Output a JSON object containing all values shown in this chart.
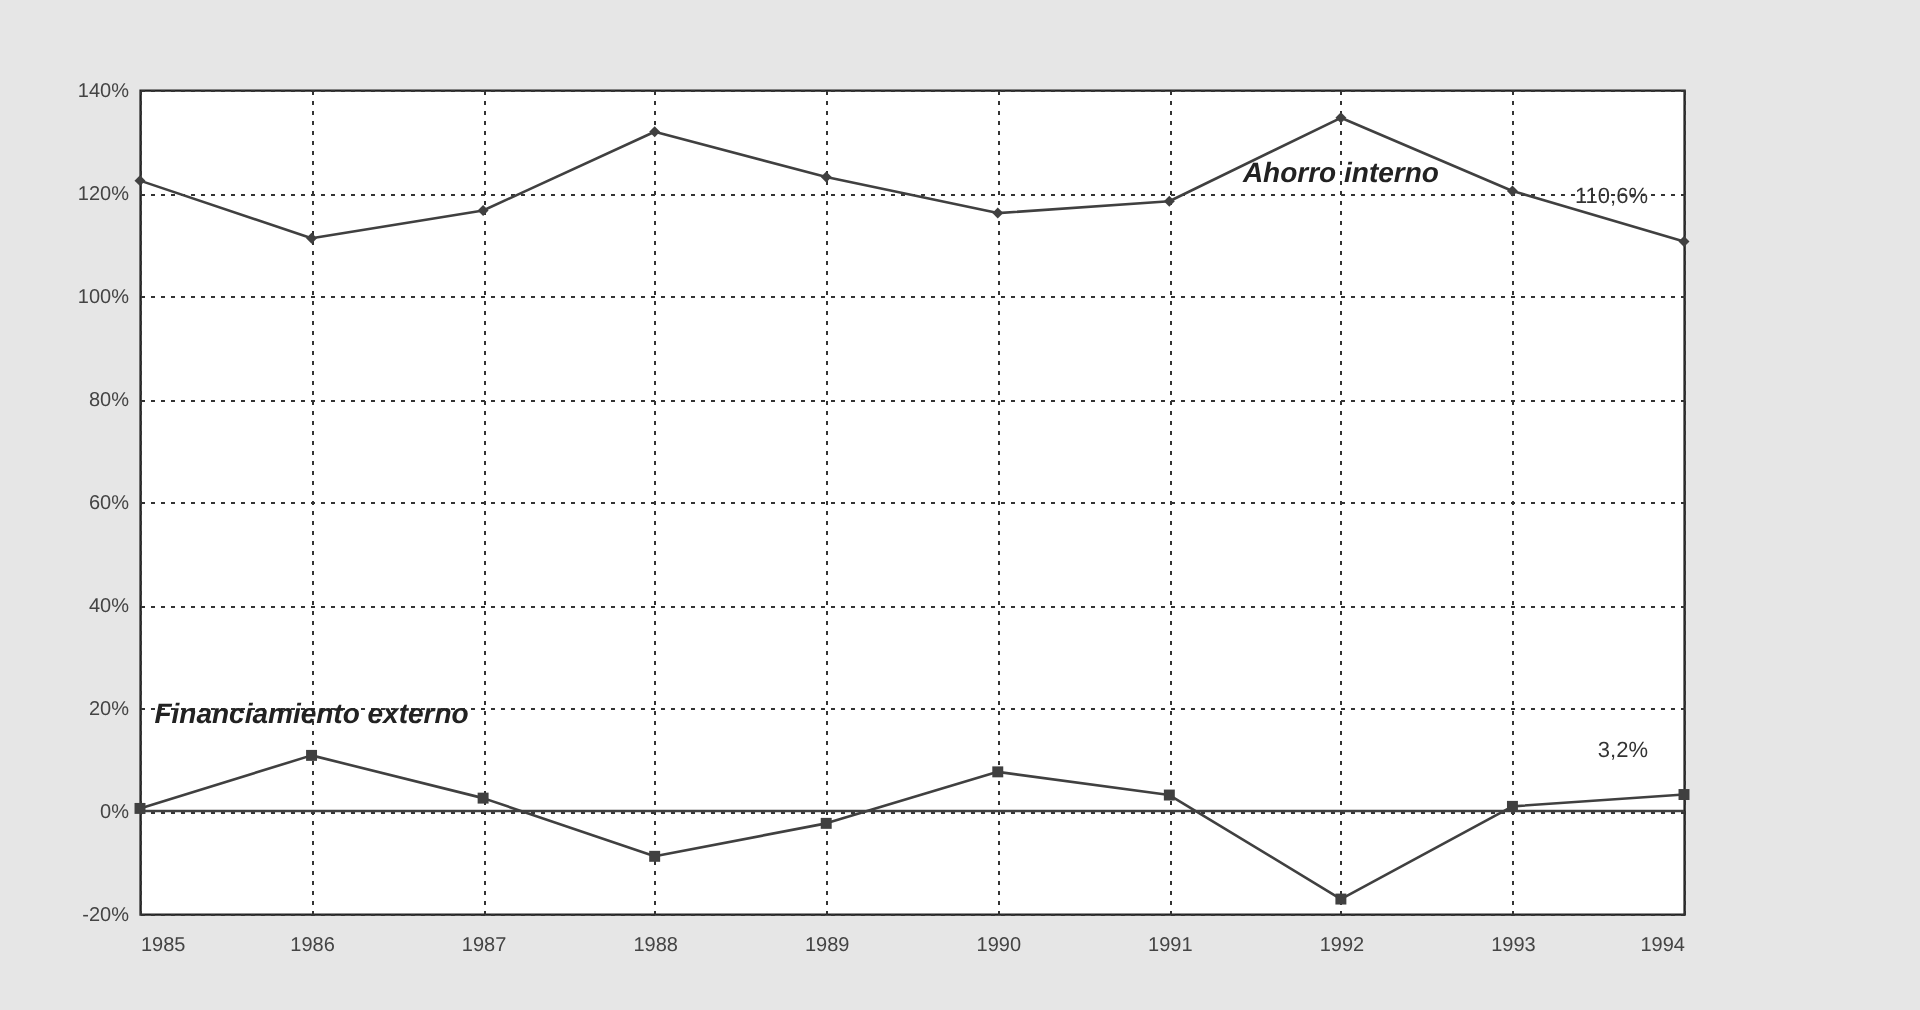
{
  "chart_data": {
    "type": "line",
    "x": [
      1985,
      1986,
      1987,
      1988,
      1989,
      1990,
      1991,
      1992,
      1993,
      1994
    ],
    "series": [
      {
        "name": "Ahorro interno",
        "color": "#404040",
        "marker": "diamond",
        "values": [
          122.4,
          111.2,
          116.6,
          131.9,
          123.1,
          116.1,
          118.4,
          134.6,
          120.4,
          110.6
        ],
        "value_labels": [
          null,
          null,
          null,
          null,
          null,
          null,
          null,
          null,
          null,
          "110,6%"
        ]
      },
      {
        "name": "Financiamiento externo",
        "color": "#404040",
        "marker": "square",
        "values": [
          0.5,
          10.8,
          2.5,
          -8.8,
          -2.4,
          7.6,
          3.1,
          -17.1,
          0.9,
          3.2
        ],
        "value_labels": [
          null,
          null,
          null,
          null,
          null,
          null,
          null,
          null,
          null,
          "3,2%"
        ]
      }
    ],
    "xlim": [
      1985,
      1994
    ],
    "xticks": [
      1985,
      1986,
      1987,
      1988,
      1989,
      1990,
      1991,
      1992,
      1993,
      1994
    ],
    "ylim": [
      -20,
      140
    ],
    "yticks": [
      {
        "value": -20,
        "label": "-20%"
      },
      {
        "value": 0,
        "label": "0%"
      },
      {
        "value": 20,
        "label": "20%"
      },
      {
        "value": 40,
        "label": "40%"
      },
      {
        "value": 60,
        "label": "60%"
      },
      {
        "value": 80,
        "label": "80%"
      },
      {
        "value": 100,
        "label": "100%"
      },
      {
        "value": 120,
        "label": "120%"
      },
      {
        "value": 140,
        "label": "140%"
      }
    ],
    "grid": true,
    "line_style": "solid",
    "ref_lines": [
      {
        "axis": "y",
        "value": 0,
        "color": "#404040",
        "line_style": "solid"
      }
    ]
  }
}
